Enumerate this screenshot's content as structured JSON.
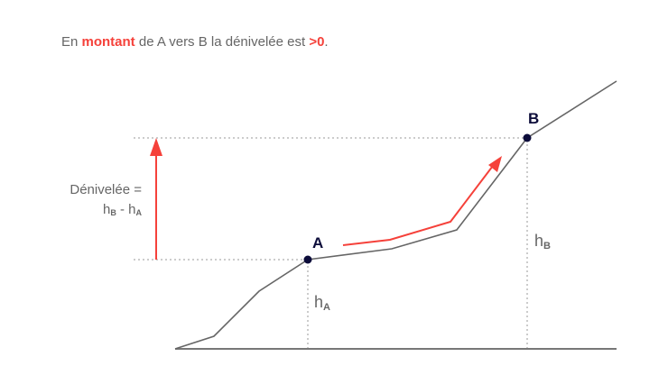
{
  "title": {
    "prefix": "En ",
    "highlight1": "montant",
    "middle": " de A vers B la dénivelée est ",
    "highlight2": ">0",
    "suffix": "."
  },
  "points": {
    "a": "A",
    "b": "B"
  },
  "heights": {
    "h": "h",
    "a_sub": "A",
    "b_sub": "B"
  },
  "denivelee": {
    "line1": "Dénivelée =",
    "h": "h",
    "b_sub": "B",
    "minus": " - ",
    "a_sub": "A"
  },
  "colors": {
    "accent": "#f5413a",
    "terrain": "#666666",
    "point": "#0c0c3a"
  }
}
